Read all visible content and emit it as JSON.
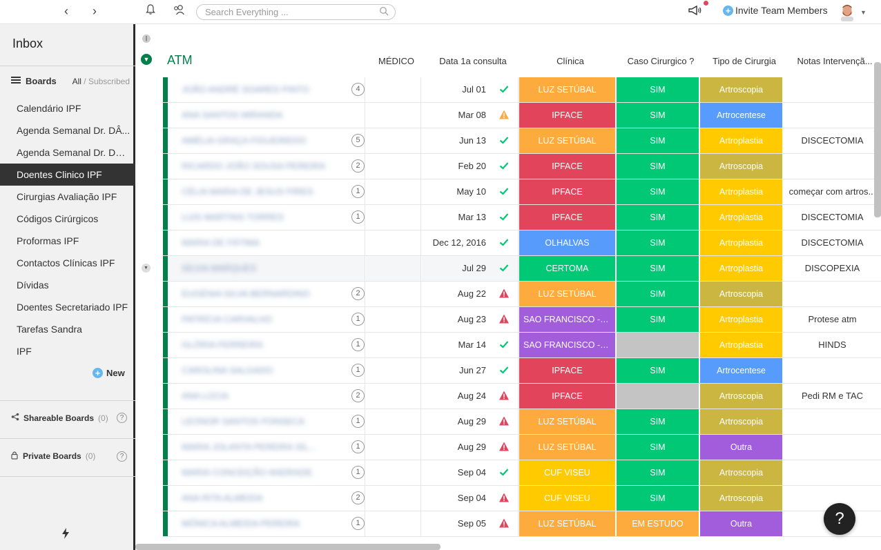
{
  "topbar": {
    "search_placeholder": "Search Everything ...",
    "invite_label": "Invite Team Members"
  },
  "sidebar": {
    "title": "Inbox",
    "boards_label": "Boards",
    "filter_all": "All",
    "filter_sep": " / ",
    "filter_subscribed": "Subscribed",
    "items": [
      {
        "label": "Calendário IPF"
      },
      {
        "label": "Agenda Semanal Dr. DÂ..."
      },
      {
        "label": "Agenda Semanal Dr. DSa..."
      },
      {
        "label": "Doentes Clinico IPF",
        "active": true
      },
      {
        "label": "Cirurgias Avaliação IPF"
      },
      {
        "label": "Códigos Cirúrgicos"
      },
      {
        "label": "Proformas IPF"
      },
      {
        "label": "Contactos Clínicas IPF"
      },
      {
        "label": "Dívidas"
      },
      {
        "label": "Doentes Secretariado IPF"
      },
      {
        "label": "Tarefas Sandra"
      },
      {
        "label": "IPF"
      }
    ],
    "new_label": "New",
    "shareable": {
      "label": "Shareable Boards",
      "count": "(0)"
    },
    "private": {
      "label": "Private Boards",
      "count": "(0)"
    }
  },
  "group": {
    "title": "ATM",
    "color": "#037f4c",
    "columns": [
      "MÉDICO",
      "Data 1a consulta",
      "Clínica",
      "Caso Cirurgico ?",
      "Tipo de Cirurgia",
      "Notas Intervençã..."
    ]
  },
  "colors": {
    "luz": "#fdab3d",
    "ipface": "#e2445c",
    "olhalvas": "#579bfc",
    "certoma": "#00c875",
    "sao": "#a25ddc",
    "cuf": "#ffcb00",
    "sim": "#00c875",
    "estudo": "#fdab3d",
    "empty": "#c4c4c4",
    "artroscopia": "#cab641",
    "artrocentese": "#579bfc",
    "artroplastia": "#ffcb00",
    "outra": "#a25ddc"
  },
  "rows": [
    {
      "name": "JOÃO ANDRÉ SOARES PINTO",
      "count": "4",
      "avatar": "a",
      "date": "Jul 01",
      "status": "ok",
      "clinica": "LUZ SETÚBAL",
      "clinica_color": "#fdab3d",
      "caso": "SIM",
      "caso_color": "#00c875",
      "tipo": "Artroscopia",
      "tipo_color": "#cab641",
      "notas": ""
    },
    {
      "name": "ANA SANTOS MIRANDA",
      "count": "",
      "avatar": "a",
      "date": "Mar 08",
      "status": "warn",
      "clinica": "IPFACE",
      "clinica_color": "#e2445c",
      "caso": "SIM",
      "caso_color": "#00c875",
      "tipo": "Artrocentese",
      "tipo_color": "#579bfc",
      "notas": ""
    },
    {
      "name": "AMÉLIA GRAÇA FIGUEIREDO",
      "count": "5",
      "avatar": "a",
      "date": "Jun 13",
      "status": "ok",
      "clinica": "LUZ SETÚBAL",
      "clinica_color": "#fdab3d",
      "caso": "SIM",
      "caso_color": "#00c875",
      "tipo": "Artroplastia",
      "tipo_color": "#ffcb00",
      "notas": "DISCECTOMIA"
    },
    {
      "name": "RICARDO JOÃO SOUSA PEREIRA",
      "count": "2",
      "avatar": "a",
      "date": "Feb 20",
      "status": "ok",
      "clinica": "IPFACE",
      "clinica_color": "#e2445c",
      "caso": "SIM",
      "caso_color": "#00c875",
      "tipo": "Artroscopia",
      "tipo_color": "#cab641",
      "notas": ""
    },
    {
      "name": "CÉLIA MARIA DE JESUS PIRES",
      "count": "1",
      "avatar": "a",
      "date": "May 10",
      "status": "ok",
      "clinica": "IPFACE",
      "clinica_color": "#e2445c",
      "caso": "SIM",
      "caso_color": "#00c875",
      "tipo": "Artroplastia",
      "tipo_color": "#ffcb00",
      "notas": "começar com artros..."
    },
    {
      "name": "LUIS MARTINS TORRES",
      "count": "1",
      "avatar": "a",
      "date": "Mar 13",
      "status": "ok",
      "clinica": "IPFACE",
      "clinica_color": "#e2445c",
      "caso": "SIM",
      "caso_color": "#00c875",
      "tipo": "Artroplastia",
      "tipo_color": "#ffcb00",
      "notas": "DISCECTOMIA"
    },
    {
      "name": "MARIA DE FÁTIMA",
      "count": "",
      "avatar": "a",
      "date": "Dec 12, 2016",
      "status": "ok",
      "clinica": "OLHALVAS",
      "clinica_color": "#579bfc",
      "caso": "SIM",
      "caso_color": "#00c875",
      "tipo": "Artroplastia",
      "tipo_color": "#ffcb00",
      "notas": "DISCECTOMIA"
    },
    {
      "name": "SÍLVIA MARQUES",
      "count": "",
      "avatar": "b",
      "date": "Jul 29",
      "status": "ok",
      "clinica": "CERTOMA",
      "clinica_color": "#00c875",
      "caso": "SIM",
      "caso_color": "#00c875",
      "tipo": "Artroplastia",
      "tipo_color": "#ffcb00",
      "notas": "DISCOPEXIA",
      "highlight": true
    },
    {
      "name": "EUGÉNIA SILVA BERNARDINO",
      "count": "2",
      "avatar": "a",
      "date": "Aug 22",
      "status": "alert",
      "clinica": "LUZ SETÚBAL",
      "clinica_color": "#fdab3d",
      "caso": "SIM",
      "caso_color": "#00c875",
      "tipo": "Artroscopia",
      "tipo_color": "#cab641",
      "notas": ""
    },
    {
      "name": "PATRÍCIA CARVALHO",
      "count": "1",
      "avatar": "b",
      "date": "Aug 23",
      "status": "alert",
      "clinica": "SAO FRANCISCO -LEIR...",
      "clinica_color": "#a25ddc",
      "caso": "SIM",
      "caso_color": "#00c875",
      "tipo": "Artroplastia",
      "tipo_color": "#ffcb00",
      "notas": "Protese atm"
    },
    {
      "name": "GLÓRIA FERREIRA",
      "count": "1",
      "avatar": "a",
      "date": "Mar 14",
      "status": "ok",
      "clinica": "SAO FRANCISCO -LEIR...",
      "clinica_color": "#a25ddc",
      "caso": "",
      "caso_color": "#c4c4c4",
      "tipo": "Artroplastia",
      "tipo_color": "#ffcb00",
      "notas": "HINDS"
    },
    {
      "name": "CAROLINA SALGADO",
      "count": "1",
      "avatar": "a",
      "date": "Jun 27",
      "status": "ok",
      "clinica": "IPFACE",
      "clinica_color": "#e2445c",
      "caso": "SIM",
      "caso_color": "#00c875",
      "tipo": "Artrocentese",
      "tipo_color": "#579bfc",
      "notas": ""
    },
    {
      "name": "ANA LÚCIA",
      "count": "2",
      "avatar": "a",
      "date": "Aug 24",
      "status": "alert",
      "clinica": "IPFACE",
      "clinica_color": "#e2445c",
      "caso": "",
      "caso_color": "#c4c4c4",
      "tipo": "Artroscopia",
      "tipo_color": "#cab641",
      "notas": "Pedi RM e TAC"
    },
    {
      "name": "LEONOR SANTOS FONSECA",
      "count": "1",
      "avatar": "a",
      "date": "Aug 29",
      "status": "alert",
      "clinica": "LUZ SETÚBAL",
      "clinica_color": "#fdab3d",
      "caso": "SIM",
      "caso_color": "#00c875",
      "tipo": "Artroscopia",
      "tipo_color": "#cab641",
      "notas": ""
    },
    {
      "name": "MARIA JOLANTA PEREIRA SIL...",
      "count": "1",
      "avatar": "a",
      "date": "Aug 29",
      "status": "alert",
      "clinica": "LUZ SETÚBAL",
      "clinica_color": "#fdab3d",
      "caso": "SIM",
      "caso_color": "#00c875",
      "tipo": "Outra",
      "tipo_color": "#a25ddc",
      "notas": ""
    },
    {
      "name": "MARIA CONCEIÇÃO ANDRADE",
      "count": "1",
      "avatar": "b",
      "date": "Sep 04",
      "status": "ok",
      "clinica": "CUF VISEU",
      "clinica_color": "#ffcb00",
      "caso": "SIM",
      "caso_color": "#00c875",
      "tipo": "Artroscopia",
      "tipo_color": "#cab641",
      "notas": ""
    },
    {
      "name": "ANA RITA ALMEIDA",
      "count": "2",
      "avatar": "b",
      "date": "Sep 04",
      "status": "alert",
      "clinica": "CUF VISEU",
      "clinica_color": "#ffcb00",
      "caso": "SIM",
      "caso_color": "#00c875",
      "tipo": "Artroscopia",
      "tipo_color": "#cab641",
      "notas": ""
    },
    {
      "name": "MÓNICA ALMEIDA PEREIRA",
      "count": "1",
      "avatar": "a",
      "date": "Sep 05",
      "status": "alert",
      "clinica": "LUZ SETÚBAL",
      "clinica_color": "#fdab3d",
      "caso": "EM ESTUDO",
      "caso_color": "#fdab3d",
      "tipo": "Outra",
      "tipo_color": "#a25ddc",
      "notas": ""
    }
  ]
}
